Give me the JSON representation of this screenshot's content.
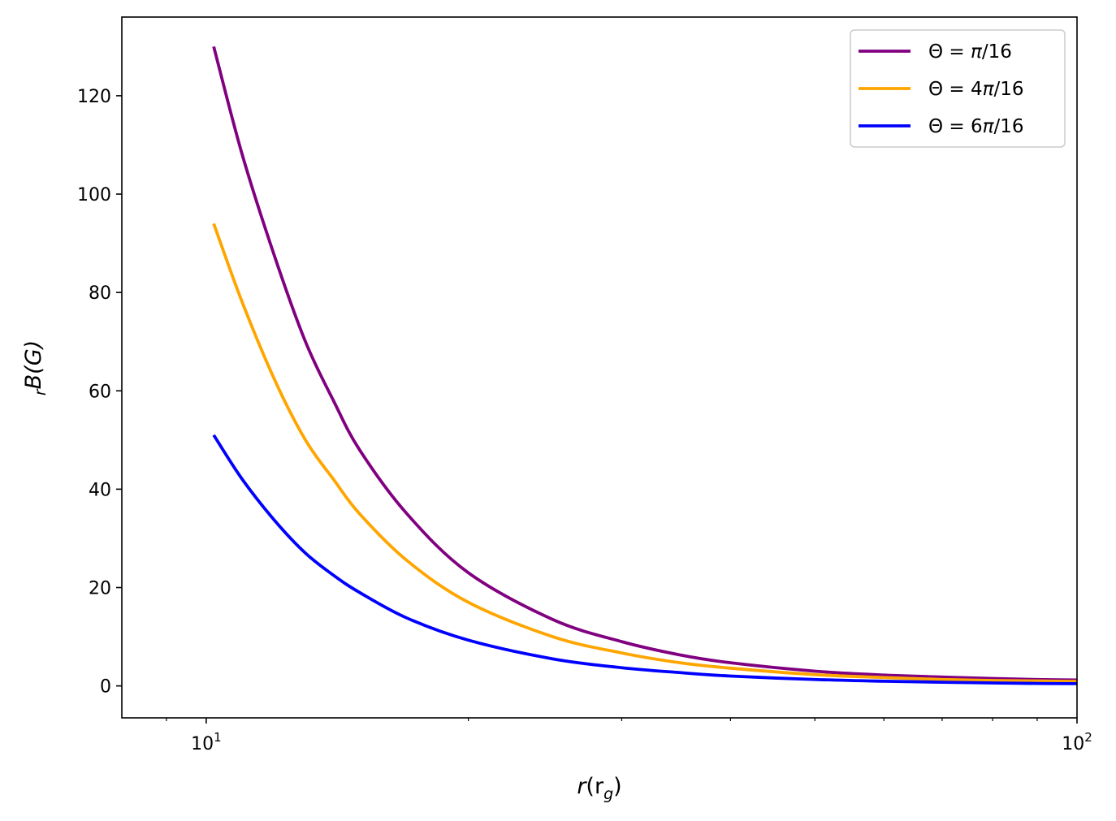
{
  "chart_data": {
    "type": "line",
    "title": "",
    "xlabel": {
      "main": "r",
      "paren_open": "(r",
      "sub": "g",
      "paren_close": ")"
    },
    "ylabel": {
      "prefix": "r",
      "main": "B(G)"
    },
    "x_scale": "log",
    "xlim": [
      8,
      100
    ],
    "ylim": [
      -6.5,
      136
    ],
    "grid": false,
    "legend_position": "top-right",
    "x_ticks": [
      {
        "value": 10,
        "base": "10",
        "exp": "1"
      },
      {
        "value": 100,
        "base": "10",
        "exp": "2"
      }
    ],
    "x_minor_ticks": [
      9,
      20,
      30,
      40,
      50,
      60,
      70,
      80,
      90
    ],
    "y_ticks": [
      "0",
      "20",
      "40",
      "60",
      "80",
      "100",
      "120"
    ],
    "series": [
      {
        "name": "Θ = π/16",
        "label_parts": {
          "theta": "Θ = ",
          "coef": "",
          "pi": "π",
          "rest": "/16"
        },
        "color": "#800080",
        "x": [
          10.2,
          11,
          12,
          13,
          14,
          15,
          17,
          20,
          25,
          30,
          35,
          40,
          50,
          60,
          70,
          80,
          90,
          100
        ],
        "y": [
          130,
          108,
          87,
          70,
          58,
          48,
          35,
          23,
          13.5,
          9.0,
          6.3,
          4.7,
          3.0,
          2.2,
          1.8,
          1.5,
          1.3,
          1.2
        ]
      },
      {
        "name": "Θ = 4π/16",
        "label_parts": {
          "theta": "Θ = ",
          "coef": "4",
          "pi": "π",
          "rest": "/16"
        },
        "color": "#FFA500",
        "x": [
          10.2,
          11,
          12,
          13,
          14,
          15,
          17,
          20,
          25,
          30,
          35,
          40,
          50,
          60,
          70,
          80,
          90,
          100
        ],
        "y": [
          94,
          78,
          62,
          50,
          42,
          35,
          25.5,
          17,
          10,
          6.7,
          4.7,
          3.6,
          2.3,
          1.7,
          1.3,
          1.1,
          1.0,
          0.9
        ]
      },
      {
        "name": "Θ = 6π/16",
        "label_parts": {
          "theta": "Θ = ",
          "coef": "6",
          "pi": "π",
          "rest": "/16"
        },
        "color": "#0000FF",
        "x": [
          10.2,
          11,
          12,
          13,
          14,
          15,
          17,
          20,
          25,
          30,
          35,
          40,
          50,
          60,
          70,
          80,
          90,
          100
        ],
        "y": [
          51,
          42,
          33.5,
          27,
          22.5,
          19,
          13.8,
          9.3,
          5.5,
          3.7,
          2.7,
          2.0,
          1.3,
          0.95,
          0.75,
          0.6,
          0.5,
          0.45
        ]
      }
    ]
  }
}
